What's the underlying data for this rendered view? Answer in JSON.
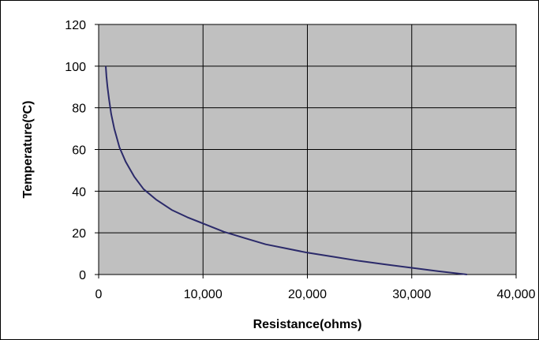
{
  "chart_data": {
    "type": "line",
    "title": "",
    "xlabel": "Resistance(ohms)",
    "ylabel": "Temperature(ºC)",
    "xlim": [
      0,
      40000
    ],
    "ylim": [
      0,
      120
    ],
    "x_ticks": [
      0,
      10000,
      20000,
      30000,
      40000
    ],
    "x_tick_labels": [
      "0",
      "10,000",
      "20,000",
      "30,000",
      "40,000"
    ],
    "y_ticks": [
      0,
      20,
      40,
      60,
      80,
      100,
      120
    ],
    "y_tick_labels": [
      "0",
      "20",
      "40",
      "60",
      "80",
      "100",
      "120"
    ],
    "grid": true,
    "legend": "none",
    "plot_background": "#c0c0c0",
    "line_color": "#2b2a6a",
    "series": [
      {
        "x": [
          680,
          750,
          850,
          1000,
          1200,
          1500,
          2000,
          2600,
          3400,
          4300,
          5500,
          7000,
          8500,
          10000,
          12000,
          14000,
          16000,
          18000,
          20000,
          22500,
          25000,
          27500,
          30000,
          32500,
          35300
        ],
        "y": [
          100,
          95,
          90,
          84,
          77,
          70,
          61,
          54,
          47,
          41,
          36,
          31,
          27.5,
          24.5,
          20.5,
          17.5,
          14.5,
          12.5,
          10.5,
          8.5,
          6.5,
          4.8,
          3.2,
          1.6,
          0
        ]
      }
    ]
  }
}
